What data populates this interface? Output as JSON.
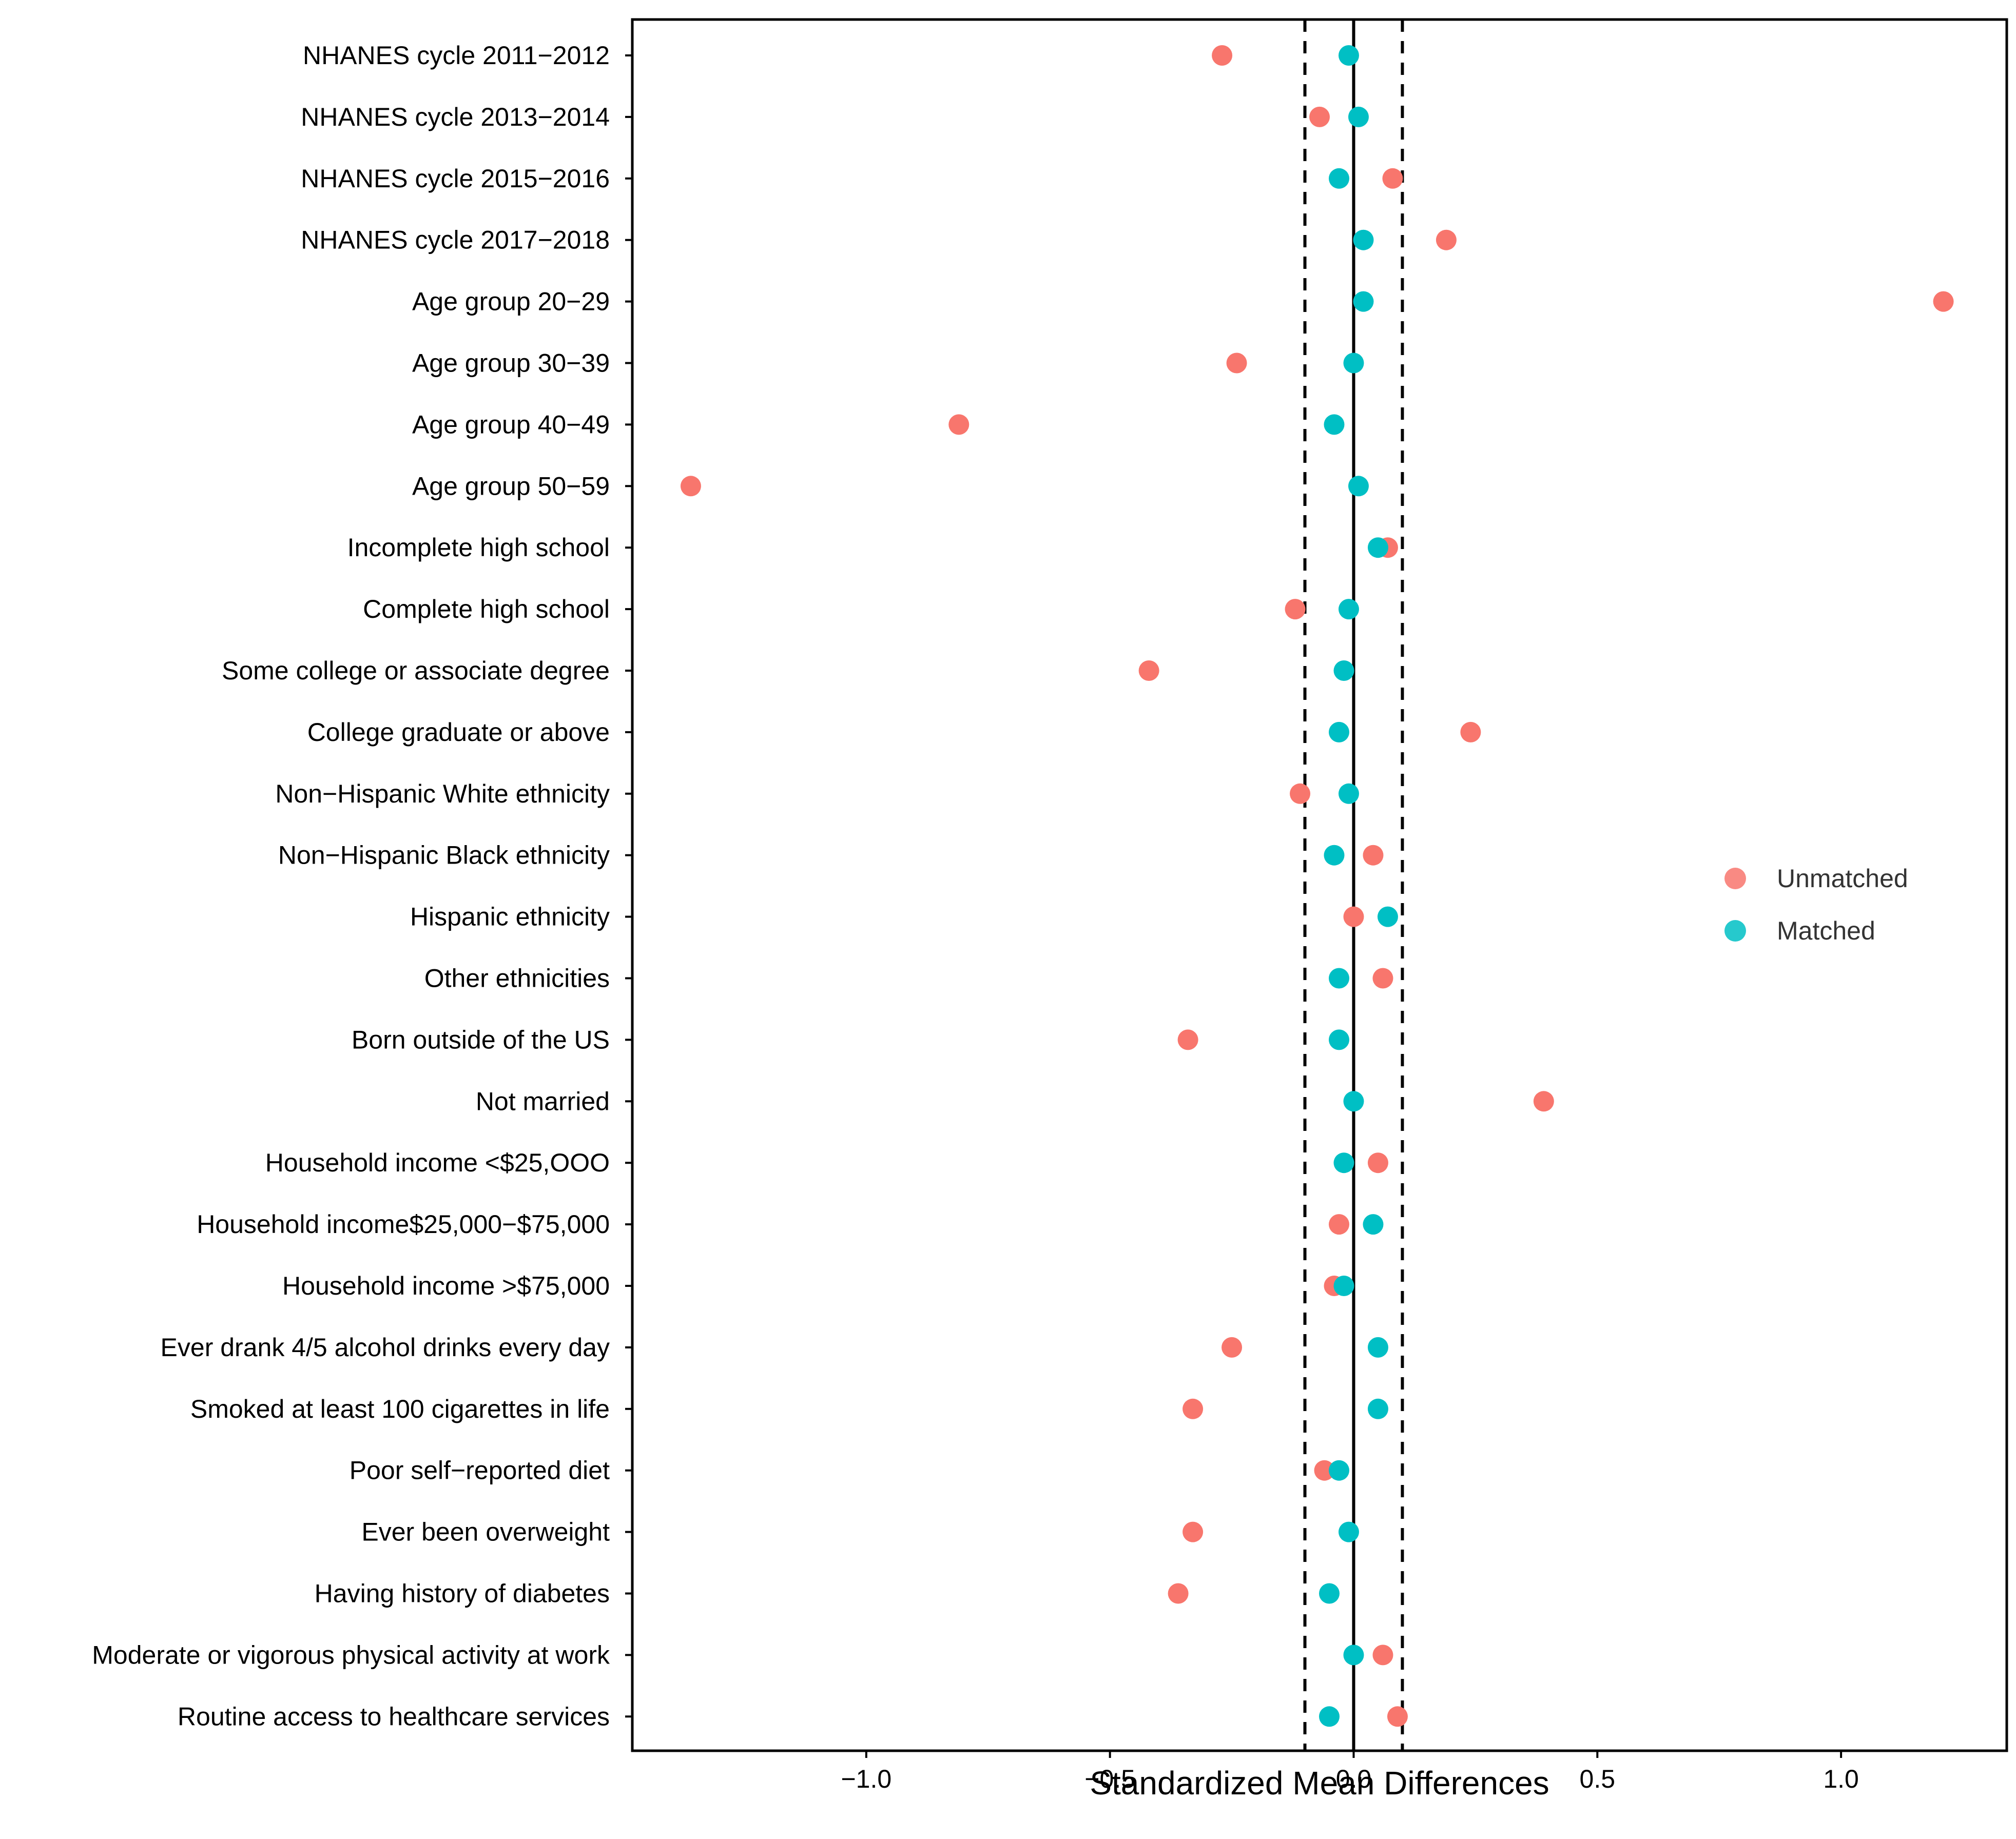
{
  "chart_data": {
    "type": "scatter",
    "title": "",
    "xlabel": "Standardized Mean Differences",
    "ylabel": "",
    "xlim": [
      -1.48,
      1.34
    ],
    "xticks": [
      -1.0,
      -0.5,
      0.0,
      0.5,
      1.0
    ],
    "xtick_labels": [
      "−1.0",
      "−0.5",
      "0.0",
      "0.5",
      "1.0"
    ],
    "reference_lines": {
      "solid": 0.0,
      "dashed": [
        -0.1,
        0.1
      ]
    },
    "grid": false,
    "legend_position": "right",
    "categories": [
      "NHANES cycle 2011−2012",
      "NHANES cycle 2013−2014",
      "NHANES cycle 2015−2016",
      "NHANES cycle 2017−2018",
      "Age group 20−29",
      "Age group 30−39",
      "Age group 40−49",
      "Age group 50−59",
      "Incomplete high school",
      "Complete high school",
      "Some college or associate degree",
      "College graduate or above",
      "Non−Hispanic White ethnicity",
      "Non−Hispanic Black ethnicity",
      "Hispanic ethnicity",
      "Other ethnicities",
      "Born outside of the US",
      "Not married",
      "Household income <$25,OOO",
      "Household income$25,000−$75,000",
      "Household income >$75,000",
      "Ever drank 4/5 alcohol drinks every day",
      "Smoked at least 100 cigarettes in life",
      "Poor self−reported diet",
      "Ever been overweight",
      "Having history of diabetes",
      "Moderate or vigorous physical activity at  work",
      "Routine access to healthcare services"
    ],
    "series": [
      {
        "name": "Unmatched",
        "color": "#F8766D",
        "values": [
          -0.27,
          -0.07,
          0.08,
          0.19,
          1.21,
          -0.24,
          -0.81,
          -1.36,
          0.07,
          -0.12,
          -0.42,
          0.24,
          -0.11,
          0.04,
          0.0,
          0.06,
          -0.34,
          0.39,
          0.05,
          -0.03,
          -0.04,
          -0.25,
          -0.33,
          -0.06,
          -0.33,
          -0.36,
          0.06,
          0.09
        ]
      },
      {
        "name": "Matched",
        "color": "#00BFC4",
        "values": [
          -0.01,
          0.01,
          -0.03,
          0.02,
          0.02,
          0.0,
          -0.04,
          0.01,
          0.05,
          -0.01,
          -0.02,
          -0.03,
          -0.01,
          -0.04,
          0.07,
          -0.03,
          -0.03,
          0.0,
          -0.02,
          0.04,
          -0.02,
          0.05,
          0.05,
          -0.03,
          -0.01,
          -0.05,
          0.0,
          -0.05
        ]
      }
    ]
  }
}
